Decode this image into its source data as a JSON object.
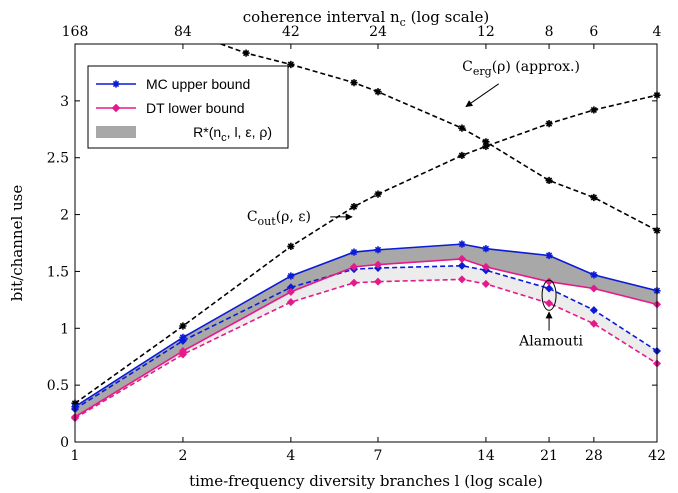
{
  "chart_data": {
    "type": "line",
    "xlabel": "time-frequency diversity branches l (log scale)",
    "ylabel": "bit/channel use",
    "top_xlabel": "coherence interval n_c (log scale)",
    "x_scale": "log",
    "xlim": [
      1,
      42
    ],
    "ylim": [
      0,
      3.5
    ],
    "x_ticks": [
      1,
      2,
      4,
      7,
      14,
      21,
      28,
      42
    ],
    "x_tick_labels": [
      "1",
      "2",
      "4",
      "7",
      "14",
      "21",
      "28",
      "42"
    ],
    "top_x_ticks": [
      1,
      2,
      4,
      7,
      14,
      21,
      28,
      42
    ],
    "top_x_tick_labels": [
      "168",
      "84",
      "42",
      "24",
      "12",
      "8",
      "6",
      "4"
    ],
    "y_ticks": [
      0,
      0.5,
      1,
      1.5,
      2,
      2.5,
      3
    ],
    "y_tick_labels": [
      "0",
      "0.5",
      "1",
      "1.5",
      "2",
      "2.5",
      "3"
    ],
    "legend_placement": "top-left",
    "legend": [
      {
        "label": "MC upper bound",
        "color": "#0b1bd6",
        "kind": "line",
        "marker": "star"
      },
      {
        "label": "DT lower bound",
        "color": "#e6198a",
        "kind": "line",
        "marker": "diamond"
      },
      {
        "label": "R*(n_c, l, ε, ρ)",
        "color": "#a8a8a8",
        "kind": "band"
      }
    ],
    "series": [
      {
        "name": "MC upper bound",
        "style": "solid",
        "color": "#0b1bd6",
        "marker": "star",
        "x": [
          1,
          2,
          4,
          6,
          7,
          12,
          14,
          21,
          28,
          42
        ],
        "y": [
          0.31,
          0.92,
          1.46,
          1.67,
          1.69,
          1.74,
          1.7,
          1.64,
          1.47,
          1.33
        ]
      },
      {
        "name": "DT lower bound",
        "style": "solid",
        "color": "#e6198a",
        "marker": "diamond",
        "x": [
          1,
          2,
          4,
          6,
          7,
          12,
          14,
          21,
          28,
          42
        ],
        "y": [
          0.22,
          0.8,
          1.32,
          1.54,
          1.56,
          1.61,
          1.54,
          1.41,
          1.35,
          1.21
        ]
      },
      {
        "name": "MC upper bound, Alamouti",
        "style": "dashed",
        "color": "#0b1bd6",
        "marker": "diamond",
        "x": [
          1,
          2,
          4,
          6,
          7,
          12,
          14,
          21,
          28,
          42
        ],
        "y": [
          0.29,
          0.89,
          1.36,
          1.52,
          1.53,
          1.55,
          1.51,
          1.35,
          1.16,
          0.8
        ]
      },
      {
        "name": "DT lower bound, Alamouti",
        "style": "dashed",
        "color": "#e6198a",
        "marker": "diamond",
        "x": [
          1,
          2,
          4,
          6,
          7,
          12,
          14,
          21,
          28,
          42
        ],
        "y": [
          0.21,
          0.77,
          1.23,
          1.4,
          1.41,
          1.43,
          1.39,
          1.22,
          1.04,
          0.69
        ]
      },
      {
        "name": "C_out(ρ, ε)",
        "style": "dashed",
        "color": "#000000",
        "marker": "star",
        "x": [
          1,
          2,
          4,
          6,
          7,
          12,
          14,
          21,
          28,
          42
        ],
        "y": [
          0.34,
          1.02,
          1.72,
          2.07,
          2.18,
          2.52,
          2.6,
          2.8,
          2.92,
          3.05
        ]
      },
      {
        "name": "C_erg(ρ) (approx.)",
        "style": "dashed",
        "color": "#000000",
        "marker": "star",
        "x": [
          2,
          3,
          4,
          6,
          7,
          12,
          14,
          21,
          28,
          42
        ],
        "y": [
          3.62,
          3.42,
          3.32,
          3.16,
          3.08,
          2.76,
          2.64,
          2.3,
          2.15,
          1.86
        ]
      }
    ],
    "annotations": [
      {
        "text": "C_erg(ρ) (approx.)",
        "x": 18,
        "y": 3.27,
        "arrow_to": [
          12.0,
          2.95
        ]
      },
      {
        "text": "C_out(ρ, ε)",
        "x": 3.9,
        "y": 1.98,
        "arrow_to": [
          6.0,
          1.98
        ]
      },
      {
        "text": "Alamouti",
        "x": 21,
        "y": 0.85,
        "arrow_to": [
          21,
          1.16
        ]
      }
    ]
  }
}
